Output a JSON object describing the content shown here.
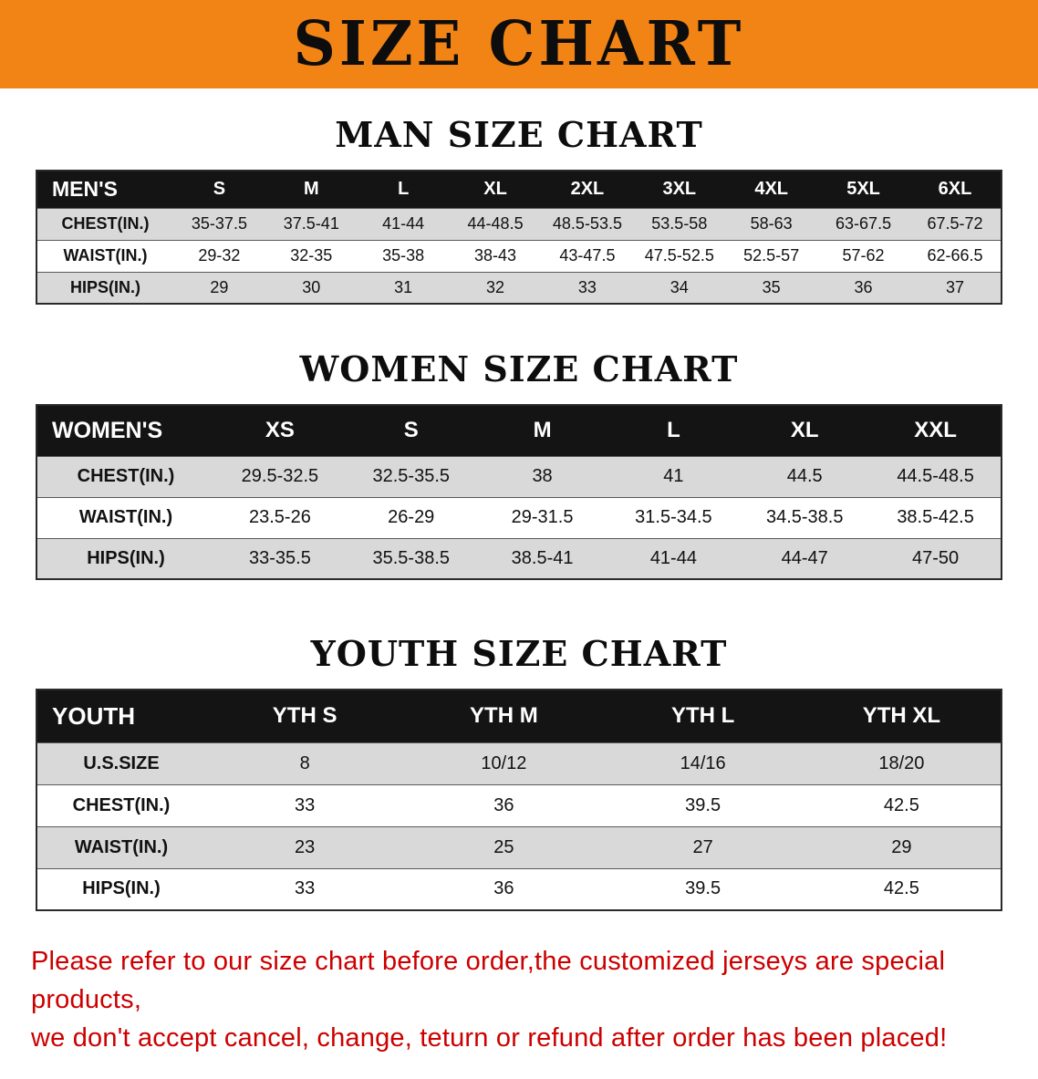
{
  "banner": {
    "title": "SIZE CHART"
  },
  "sections": [
    {
      "heading": "MAN SIZE CHART",
      "table": {
        "header": [
          "MEN'S",
          "S",
          "M",
          "L",
          "XL",
          "2XL",
          "3XL",
          "4XL",
          "5XL",
          "6XL"
        ],
        "rows": [
          [
            "CHEST(IN.)",
            "35-37.5",
            "37.5-41",
            "41-44",
            "44-48.5",
            "48.5-53.5",
            "53.5-58",
            "58-63",
            "63-67.5",
            "67.5-72"
          ],
          [
            "WAIST(IN.)",
            "29-32",
            "32-35",
            "35-38",
            "38-43",
            "43-47.5",
            "47.5-52.5",
            "52.5-57",
            "57-62",
            "62-66.5"
          ],
          [
            "HIPS(IN.)",
            "29",
            "30",
            "31",
            "32",
            "33",
            "34",
            "35",
            "36",
            "37"
          ]
        ]
      }
    },
    {
      "heading": "WOMEN SIZE CHART",
      "table": {
        "header": [
          "WOMEN'S",
          "XS",
          "S",
          "M",
          "L",
          "XL",
          "XXL"
        ],
        "rows": [
          [
            "CHEST(IN.)",
            "29.5-32.5",
            "32.5-35.5",
            "38",
            "41",
            "44.5",
            "44.5-48.5"
          ],
          [
            "WAIST(IN.)",
            "23.5-26",
            "26-29",
            "29-31.5",
            "31.5-34.5",
            "34.5-38.5",
            "38.5-42.5"
          ],
          [
            "HIPS(IN.)",
            "33-35.5",
            "35.5-38.5",
            "38.5-41",
            "41-44",
            "44-47",
            "47-50"
          ]
        ]
      }
    },
    {
      "heading": "YOUTH SIZE CHART",
      "table": {
        "header": [
          "YOUTH",
          "YTH S",
          "YTH M",
          "YTH L",
          "YTH XL"
        ],
        "rows": [
          [
            "U.S.SIZE",
            "8",
            "10/12",
            "14/16",
            "18/20"
          ],
          [
            "CHEST(IN.)",
            "33",
            "36",
            "39.5",
            "42.5"
          ],
          [
            "WAIST(IN.)",
            "23",
            "25",
            "27",
            "29"
          ],
          [
            "HIPS(IN.)",
            "33",
            "36",
            "39.5",
            "42.5"
          ]
        ]
      }
    }
  ],
  "disclaimer": {
    "line1": "Please refer to our size chart before order,the customized jerseys are special products,",
    "line2": "we don't accept cancel, change, teturn or refund after order has been placed!"
  },
  "colors": {
    "accent_orange": "#F28416",
    "header_bg": "#141414",
    "row_alt_bg": "#d9d9d9",
    "row_bg": "#ffffff",
    "disclaimer_red": "#cc0000"
  }
}
